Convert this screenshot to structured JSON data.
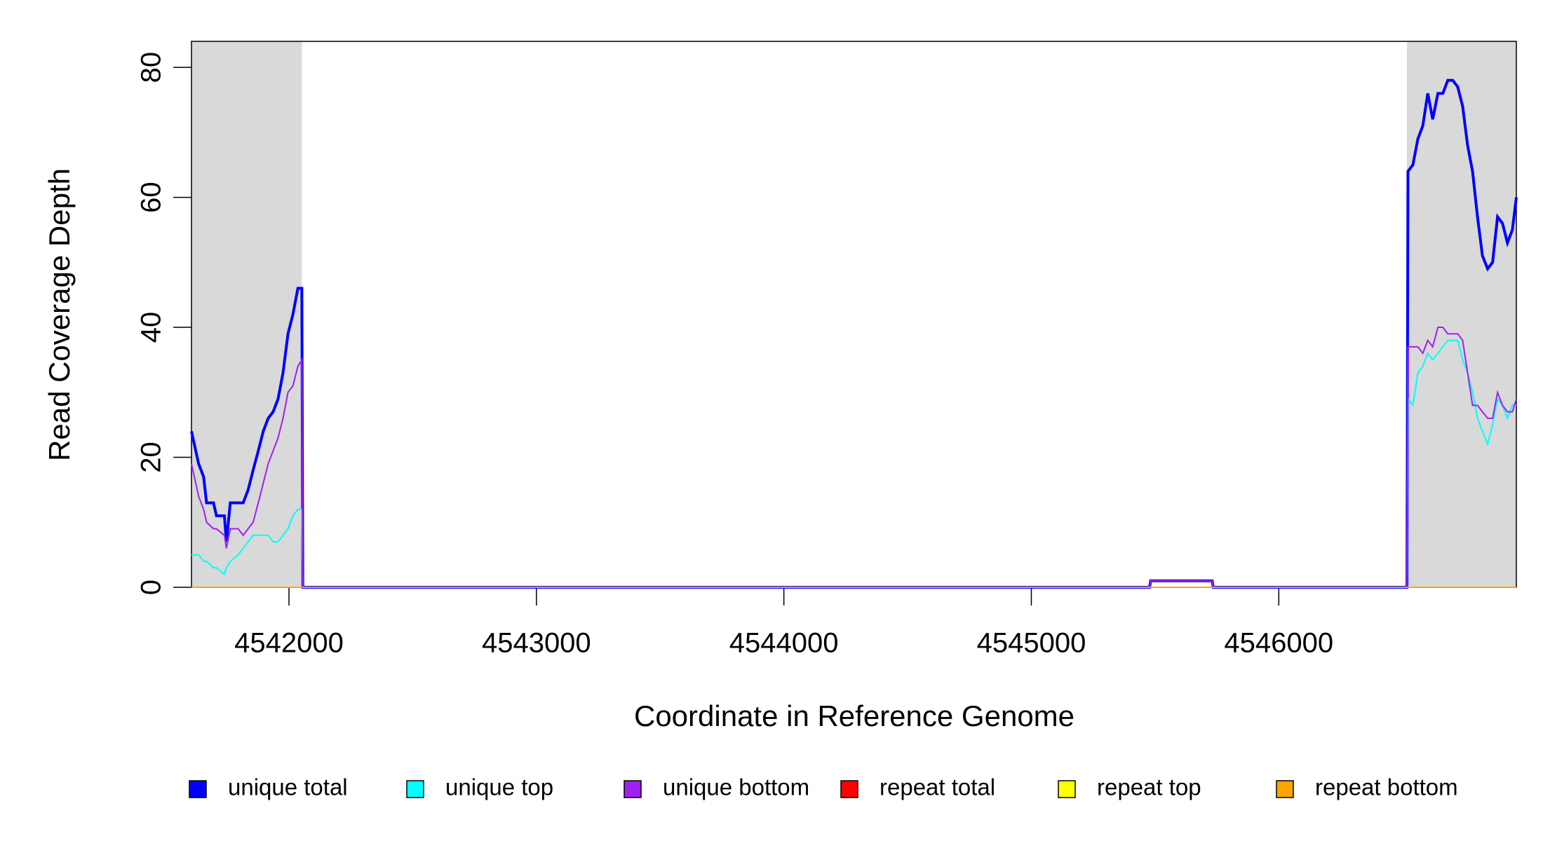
{
  "chart_data": {
    "type": "line",
    "xlabel": "Coordinate in Reference Genome",
    "ylabel": "Read Coverage Depth",
    "xlim": [
      4541606,
      4546960
    ],
    "ylim": [
      0,
      84
    ],
    "xticks": [
      4542000,
      4543000,
      4544000,
      4545000,
      4546000
    ],
    "yticks": [
      0,
      20,
      40,
      60,
      80
    ],
    "shaded_regions": [
      [
        4541606,
        4542052
      ],
      [
        4546518,
        4546960
      ]
    ],
    "legend": "bottom",
    "x": [
      4541606,
      4541635,
      4541655,
      4541667,
      4541695,
      4541707,
      4541739,
      4541747,
      4541763,
      4541795,
      4541815,
      4541835,
      4541855,
      4541876,
      4541896,
      4541916,
      4541936,
      4541956,
      4541976,
      4541996,
      4542016,
      4542036,
      4542052,
      4542056,
      4545478,
      4545482,
      4545731,
      4545735,
      4546518,
      4546522,
      4546542,
      4546562,
      4546582,
      4546602,
      4546622,
      4546643,
      4546663,
      4546683,
      4546703,
      4546723,
      4546743,
      4546763,
      4546783,
      4546803,
      4546823,
      4546844,
      4546864,
      4546884,
      4546904,
      4546924,
      4546944,
      4546960
    ],
    "series": [
      {
        "name": "unique total",
        "color": "#0000ff",
        "values": [
          24,
          19,
          17,
          13,
          13,
          11,
          11,
          7,
          13,
          13,
          13,
          15,
          18,
          21,
          24,
          26,
          27,
          29,
          33,
          39,
          42,
          46,
          46,
          0,
          0,
          1,
          1,
          0,
          0,
          64,
          65,
          69,
          71,
          76,
          72,
          76,
          76,
          78,
          78,
          77,
          74,
          68,
          64,
          57,
          51,
          49,
          50,
          57,
          56,
          53,
          55,
          60
        ]
      },
      {
        "name": "unique top",
        "color": "#00ffff",
        "values": [
          5,
          5,
          4,
          4,
          3,
          3,
          2,
          3,
          4,
          5,
          6,
          7,
          8,
          8,
          8,
          8,
          7,
          7,
          8,
          9,
          11,
          12,
          12,
          0,
          0,
          0,
          0,
          0,
          0,
          29,
          28,
          33,
          34,
          36,
          35,
          36,
          37,
          38,
          38,
          38,
          35,
          33,
          30,
          26,
          24,
          22,
          25,
          29,
          28,
          26,
          28,
          28
        ]
      },
      {
        "name": "unique bottom",
        "color": "#a020f0",
        "values": [
          19,
          14,
          12,
          10,
          9,
          9,
          8,
          6,
          9,
          9,
          8,
          9,
          10,
          13,
          16,
          19,
          21,
          23,
          26,
          30,
          31,
          34,
          35,
          0,
          0,
          1,
          1,
          0,
          0,
          37,
          37,
          37,
          36,
          38,
          37,
          40,
          40,
          39,
          39,
          39,
          38,
          33,
          28,
          28,
          27,
          26,
          26,
          30,
          28,
          27,
          27,
          29
        ]
      },
      {
        "name": "repeat total",
        "color": "#ff0000",
        "values": [
          0,
          0,
          0,
          0,
          0,
          0,
          0,
          0,
          0,
          0,
          0,
          0,
          0,
          0,
          0,
          0,
          0,
          0,
          0,
          0,
          0,
          0,
          0,
          0,
          0,
          0,
          0,
          0,
          0,
          0,
          0,
          0,
          0,
          0,
          0,
          0,
          0,
          0,
          0,
          0,
          0,
          0,
          0,
          0,
          0,
          0,
          0,
          0,
          0,
          0,
          0,
          0
        ]
      },
      {
        "name": "repeat top",
        "color": "#ffff00",
        "values": [
          0,
          0,
          0,
          0,
          0,
          0,
          0,
          0,
          0,
          0,
          0,
          0,
          0,
          0,
          0,
          0,
          0,
          0,
          0,
          0,
          0,
          0,
          0,
          0,
          0,
          0,
          0,
          0,
          0,
          0,
          0,
          0,
          0,
          0,
          0,
          0,
          0,
          0,
          0,
          0,
          0,
          0,
          0,
          0,
          0,
          0,
          0,
          0,
          0,
          0,
          0,
          0
        ]
      },
      {
        "name": "repeat bottom",
        "color": "#ffa500",
        "values": [
          0,
          0,
          0,
          0,
          0,
          0,
          0,
          0,
          0,
          0,
          0,
          0,
          0,
          0,
          0,
          0,
          0,
          0,
          0,
          0,
          0,
          0,
          0,
          0,
          0,
          0,
          0,
          0,
          0,
          0,
          0,
          0,
          0,
          0,
          0,
          0,
          0,
          0,
          0,
          0,
          0,
          0,
          0,
          0,
          0,
          0,
          0,
          0,
          0,
          0,
          0,
          0
        ]
      }
    ]
  }
}
